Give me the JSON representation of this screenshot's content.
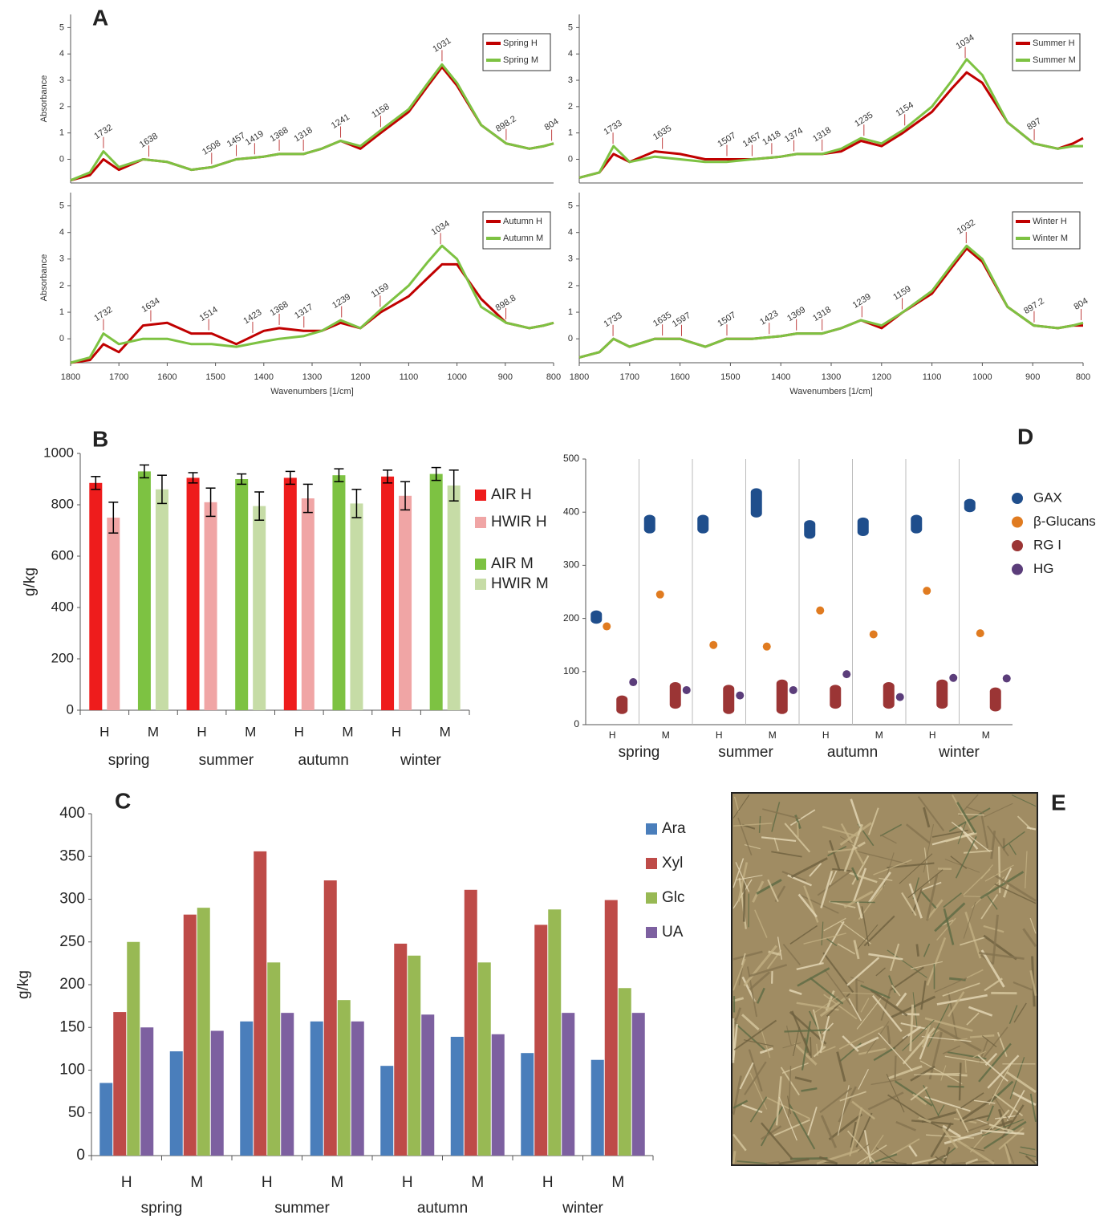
{
  "panel_labels": [
    "A",
    "B",
    "C",
    "D",
    "E"
  ],
  "chart_data": [
    {
      "type": "line",
      "ylabel": "Absorbance",
      "x": [
        1800,
        1760,
        1732,
        1700,
        1650,
        1600,
        1550,
        1508,
        1457,
        1400,
        1368,
        1318,
        1280,
        1241,
        1200,
        1158,
        1100,
        1060,
        1031,
        1000,
        950,
        898,
        850,
        820,
        800
      ],
      "xlim": [
        1800,
        800
      ],
      "ylim": [
        -0.9,
        5.5
      ],
      "yticks": [
        0,
        1,
        2,
        3,
        4,
        5
      ],
      "series": [
        {
          "name": "Spring H",
          "color": "#c00000",
          "values": [
            -0.8,
            -0.6,
            0.0,
            -0.4,
            0.0,
            -0.1,
            -0.4,
            -0.3,
            0.0,
            0.1,
            0.2,
            0.2,
            0.4,
            0.7,
            0.4,
            1.0,
            1.8,
            2.8,
            3.5,
            2.8,
            1.3,
            0.6,
            0.4,
            0.5,
            0.6
          ]
        },
        {
          "name": "Spring M",
          "color": "#7dc242",
          "values": [
            -0.8,
            -0.5,
            0.3,
            -0.3,
            0.0,
            -0.1,
            -0.4,
            -0.3,
            0.0,
            0.1,
            0.2,
            0.2,
            0.4,
            0.7,
            0.5,
            1.1,
            1.9,
            2.9,
            3.6,
            2.9,
            1.3,
            0.6,
            0.4,
            0.5,
            0.6
          ]
        }
      ],
      "peaks": [
        1732,
        1638,
        1508,
        1457,
        1419,
        1368,
        1318,
        1241,
        1158,
        1031,
        898.2,
        804
      ]
    },
    {
      "type": "line",
      "x": [
        1800,
        1760,
        1732,
        1700,
        1650,
        1600,
        1550,
        1508,
        1457,
        1400,
        1368,
        1318,
        1280,
        1241,
        1200,
        1158,
        1100,
        1060,
        1031,
        1000,
        950,
        898,
        850,
        820,
        800
      ],
      "xlim": [
        1800,
        800
      ],
      "ylim": [
        -0.9,
        5.5
      ],
      "yticks": [
        0,
        1,
        2,
        3,
        4,
        5
      ],
      "series": [
        {
          "name": "Summer H",
          "color": "#c00000",
          "values": [
            -0.7,
            -0.5,
            0.2,
            -0.1,
            0.3,
            0.2,
            0.0,
            0.0,
            0.0,
            0.1,
            0.2,
            0.2,
            0.3,
            0.7,
            0.5,
            1.0,
            1.8,
            2.7,
            3.3,
            2.9,
            1.4,
            0.6,
            0.4,
            0.6,
            0.8
          ]
        },
        {
          "name": "Summer M",
          "color": "#7dc242",
          "values": [
            -0.7,
            -0.5,
            0.5,
            -0.1,
            0.1,
            0.0,
            -0.1,
            -0.1,
            0.0,
            0.1,
            0.2,
            0.2,
            0.4,
            0.8,
            0.6,
            1.1,
            2.0,
            3.0,
            3.8,
            3.2,
            1.4,
            0.6,
            0.4,
            0.5,
            0.5
          ]
        }
      ],
      "peaks": [
        1733,
        1635,
        1507,
        1457,
        1418,
        1374,
        1318,
        1235,
        1154,
        1034,
        897
      ]
    },
    {
      "type": "line",
      "ylabel": "Absorbance",
      "xlabel": "Wavenumbers [1/cm]",
      "x": [
        1800,
        1760,
        1732,
        1700,
        1650,
        1600,
        1550,
        1508,
        1457,
        1400,
        1368,
        1318,
        1280,
        1241,
        1200,
        1158,
        1100,
        1060,
        1031,
        1000,
        950,
        898,
        850,
        820,
        800
      ],
      "xlim": [
        1800,
        800
      ],
      "ylim": [
        -0.9,
        5.5
      ],
      "yticks": [
        0,
        1,
        2,
        3,
        4,
        5
      ],
      "xticks": [
        1800,
        1700,
        1600,
        1500,
        1400,
        1300,
        1200,
        1100,
        1000,
        900,
        800
      ],
      "series": [
        {
          "name": "Autumn H",
          "color": "#c00000",
          "values": [
            -0.9,
            -0.8,
            -0.2,
            -0.5,
            0.5,
            0.6,
            0.2,
            0.2,
            -0.2,
            0.3,
            0.4,
            0.3,
            0.3,
            0.6,
            0.4,
            1.0,
            1.6,
            2.3,
            2.8,
            2.8,
            1.5,
            0.6,
            0.4,
            0.5,
            0.6
          ]
        },
        {
          "name": "Autumn M",
          "color": "#7dc242",
          "values": [
            -0.9,
            -0.7,
            0.2,
            -0.2,
            0.0,
            0.0,
            -0.2,
            -0.2,
            -0.3,
            -0.1,
            0.0,
            0.1,
            0.3,
            0.7,
            0.4,
            1.1,
            2.0,
            2.9,
            3.5,
            3.0,
            1.2,
            0.6,
            0.4,
            0.5,
            0.6
          ]
        }
      ],
      "peaks": [
        1732,
        1634,
        1514,
        1423,
        1368,
        1317,
        1239,
        1159,
        1034,
        898.8
      ]
    },
    {
      "type": "line",
      "xlabel": "Wavenumbers [1/cm]",
      "x": [
        1800,
        1760,
        1732,
        1700,
        1650,
        1600,
        1550,
        1508,
        1457,
        1400,
        1368,
        1318,
        1280,
        1241,
        1200,
        1158,
        1100,
        1060,
        1031,
        1000,
        950,
        898,
        850,
        820,
        800
      ],
      "xlim": [
        1800,
        800
      ],
      "ylim": [
        -0.9,
        5.5
      ],
      "yticks": [
        0,
        1,
        2,
        3,
        4,
        5
      ],
      "xticks": [
        1800,
        1700,
        1600,
        1500,
        1400,
        1300,
        1200,
        1100,
        1000,
        900,
        800
      ],
      "series": [
        {
          "name": "Winter H",
          "color": "#c00000",
          "values": [
            -0.7,
            -0.5,
            0.0,
            -0.3,
            0.0,
            0.0,
            -0.3,
            0.0,
            0.0,
            0.1,
            0.2,
            0.2,
            0.4,
            0.7,
            0.4,
            1.0,
            1.7,
            2.7,
            3.4,
            2.9,
            1.2,
            0.5,
            0.4,
            0.5,
            0.5
          ]
        },
        {
          "name": "Winter M",
          "color": "#7dc242",
          "values": [
            -0.7,
            -0.5,
            0.0,
            -0.3,
            0.0,
            0.0,
            -0.3,
            0.0,
            0.0,
            0.1,
            0.2,
            0.2,
            0.4,
            0.7,
            0.5,
            1.0,
            1.8,
            2.8,
            3.5,
            3.0,
            1.2,
            0.5,
            0.4,
            0.5,
            0.6
          ]
        }
      ],
      "peaks": [
        1733,
        1635,
        1597,
        1507,
        1423,
        1369,
        1318,
        1239,
        1159,
        1032,
        897.2,
        804
      ]
    },
    {
      "type": "bar",
      "ylabel": "g/kg",
      "categories": [
        "H",
        "M",
        "H",
        "M",
        "H",
        "M",
        "H",
        "M"
      ],
      "groups": [
        "spring",
        "summer",
        "autumn",
        "winter"
      ],
      "ylim": [
        0,
        1000
      ],
      "yticks": [
        0,
        200,
        400,
        600,
        800,
        1000
      ],
      "series": [
        {
          "name": "AIR H",
          "color": "#ee1c1c",
          "values": [
            885,
            null,
            905,
            null,
            905,
            null,
            910,
            null
          ],
          "errors": [
            25,
            null,
            20,
            null,
            25,
            null,
            25,
            null
          ]
        },
        {
          "name": "HWIR H",
          "color": "#f0a5a5",
          "values": [
            750,
            null,
            810,
            null,
            825,
            null,
            835,
            null
          ],
          "errors": [
            60,
            null,
            55,
            null,
            55,
            null,
            55,
            null
          ]
        },
        {
          "name": "AIR M",
          "color": "#7dc242",
          "values": [
            null,
            930,
            null,
            900,
            null,
            915,
            null,
            920
          ],
          "errors": [
            null,
            25,
            null,
            20,
            null,
            25,
            null,
            25
          ]
        },
        {
          "name": "HWIR M",
          "color": "#c6dca6",
          "values": [
            null,
            860,
            null,
            795,
            null,
            805,
            null,
            875
          ],
          "errors": [
            null,
            55,
            null,
            55,
            null,
            55,
            null,
            60
          ]
        }
      ]
    },
    {
      "type": "bar",
      "ylabel": "g/kg",
      "categories": [
        "H",
        "M",
        "H",
        "M",
        "H",
        "M",
        "H",
        "M"
      ],
      "groups": [
        "spring",
        "summer",
        "autumn",
        "winter"
      ],
      "ylim": [
        0,
        400
      ],
      "yticks": [
        0,
        50,
        100,
        150,
        200,
        250,
        300,
        350,
        400
      ],
      "series": [
        {
          "name": "Ara",
          "color": "#4a7ebb",
          "values": [
            85,
            122,
            157,
            157,
            105,
            139,
            120,
            112
          ]
        },
        {
          "name": "Xyl",
          "color": "#be4b48",
          "values": [
            168,
            282,
            356,
            322,
            248,
            311,
            270,
            299
          ]
        },
        {
          "name": "Glc",
          "color": "#98b954",
          "values": [
            250,
            290,
            226,
            182,
            234,
            226,
            288,
            196
          ]
        },
        {
          "name": "UA",
          "color": "#7d60a0",
          "values": [
            150,
            146,
            167,
            157,
            165,
            142,
            167,
            167
          ]
        }
      ]
    },
    {
      "type": "range",
      "categories": [
        "H",
        "M",
        "H",
        "M",
        "H",
        "M",
        "H",
        "M"
      ],
      "groups": [
        "spring",
        "summer",
        "autumn",
        "winter"
      ],
      "ylim": [
        0,
        500
      ],
      "yticks": [
        0,
        100,
        200,
        300,
        400,
        500
      ],
      "series": [
        {
          "name": "GAX",
          "color": "#1f4e8c",
          "low": [
            190,
            360,
            360,
            390,
            350,
            355,
            360,
            400
          ],
          "high": [
            215,
            395,
            395,
            445,
            385,
            390,
            395,
            425
          ]
        },
        {
          "name": "β-Glucans",
          "color": "#e07b20",
          "values": [
            185,
            245,
            150,
            147,
            215,
            170,
            252,
            172
          ]
        },
        {
          "name": "RG I",
          "color": "#9b3535",
          "low": [
            20,
            30,
            20,
            20,
            30,
            30,
            30,
            25
          ],
          "high": [
            55,
            80,
            75,
            85,
            75,
            80,
            85,
            70
          ]
        },
        {
          "name": "HG",
          "color": "#5b3d7a",
          "values": [
            80,
            65,
            55,
            65,
            95,
            52,
            88,
            87
          ]
        }
      ]
    }
  ]
}
